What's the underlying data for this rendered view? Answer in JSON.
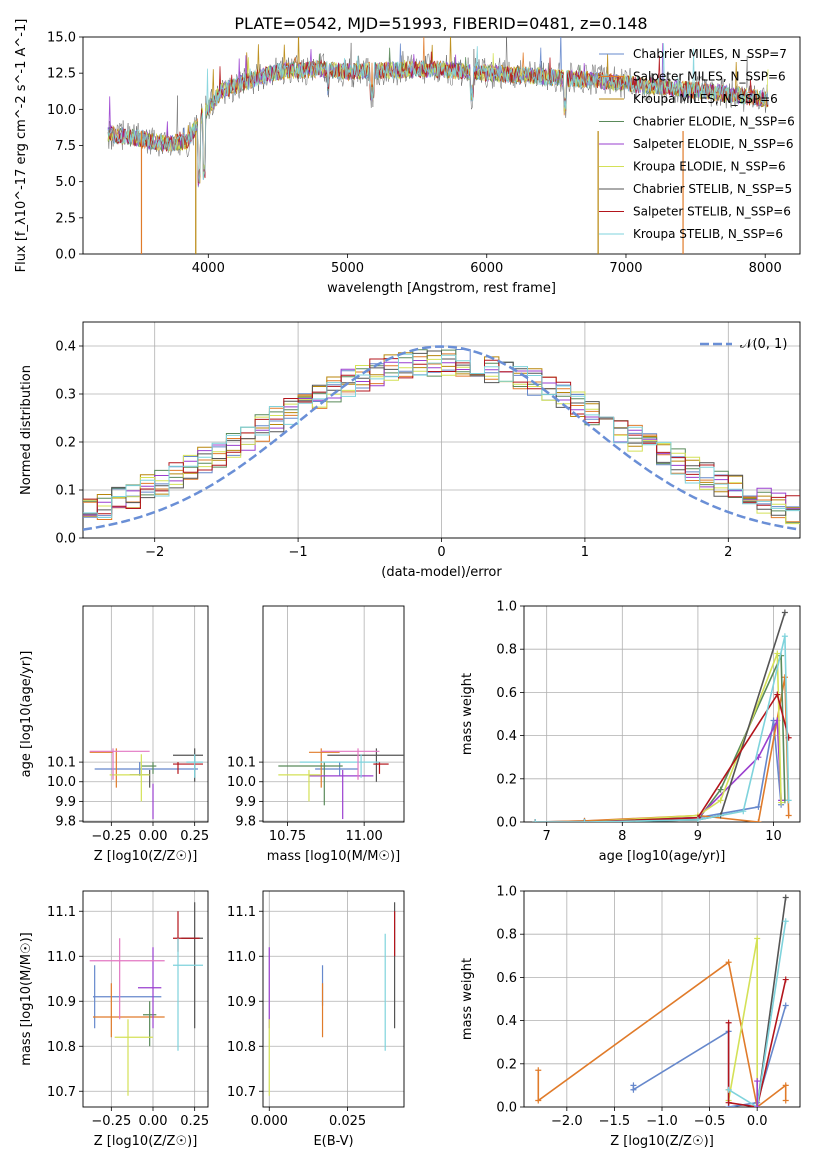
{
  "figure": {
    "title": "PLATE=0542, MJD=51993, FIBERID=0481, z=0.148"
  },
  "colors": {
    "series": [
      "#6688cc",
      "#e07b2a",
      "#b8860b",
      "#5a8a5a",
      "#9a3fcf",
      "#d4e157",
      "#555555",
      "#b3151c",
      "#7fd3dc"
    ],
    "gauss": "#6a8fd6",
    "grid": "#b0b0b0"
  },
  "legend_labels": [
    "Chabrier MILES, N_SSP=7",
    "Salpeter MILES, N_SSP=6",
    "Kroupa MILES, N_SSP=6",
    "Chabrier ELODIE, N_SSP=6",
    "Salpeter ELODIE, N_SSP=6",
    "Kroupa ELODIE, N_SSP=6",
    "Chabrier STELIB, N_SSP=5",
    "Salpeter STELIB, N_SSP=6",
    "Kroupa STELIB, N_SSP=6"
  ],
  "chart_data": [
    {
      "id": "spectrum",
      "type": "line",
      "xlabel": "wavelength [Angstrom, rest frame]",
      "ylabel": "Flux [f_λ10^-17 erg cm^-2 s^-1 A^-1]",
      "xlim": [
        3100,
        8250
      ],
      "ylim": [
        0,
        15
      ],
      "xticks": [
        4000,
        5000,
        6000,
        7000,
        8000
      ],
      "yticks": [
        0.0,
        2.5,
        5.0,
        7.5,
        10.0,
        12.5,
        15.0
      ],
      "ytick_labels": [
        "0.0",
        "2.5",
        "5.0",
        "7.5",
        "10.0",
        "12.5",
        "15.0"
      ],
      "grid": false,
      "legend": "upper-right",
      "continuum": [
        [
          3280,
          8.3
        ],
        [
          3500,
          8.0
        ],
        [
          3700,
          7.6
        ],
        [
          3850,
          7.8
        ],
        [
          3950,
          9.5
        ],
        [
          4100,
          11.3
        ],
        [
          4300,
          12.0
        ],
        [
          4500,
          12.6
        ],
        [
          4800,
          12.8
        ],
        [
          5000,
          12.6
        ],
        [
          5300,
          12.7
        ],
        [
          5600,
          12.8
        ],
        [
          5900,
          12.6
        ],
        [
          6200,
          12.4
        ],
        [
          6500,
          12.2
        ],
        [
          6800,
          12.0
        ],
        [
          7100,
          11.7
        ],
        [
          7400,
          11.4
        ],
        [
          7700,
          11.1
        ],
        [
          8000,
          10.7
        ]
      ],
      "drop_lines": [
        {
          "x": 3520,
          "color": "#e07b2a"
        },
        {
          "x": 3910,
          "color": "#b8860b"
        },
        {
          "x": 6800,
          "color": "#b8860b"
        },
        {
          "x": 7410,
          "color": "#e07b2a"
        }
      ]
    },
    {
      "id": "residual-histogram",
      "type": "histogram",
      "xlabel": "(data-model)/error",
      "ylabel": "Normed distribution",
      "xlim": [
        -2.5,
        2.5
      ],
      "ylim": [
        0,
        0.45
      ],
      "xticks": [
        -2,
        -1,
        0,
        1,
        2
      ],
      "xtick_labels": [
        "−2",
        "−1",
        "0",
        "1",
        "2"
      ],
      "yticks": [
        0.0,
        0.1,
        0.2,
        0.3,
        0.4
      ],
      "ytick_labels": [
        "0.0",
        "0.1",
        "0.2",
        "0.3",
        "0.4"
      ],
      "grid": true,
      "legend": "upper-right",
      "gauss_label": "𝒩(0, 1)",
      "bin_width": 0.1
    },
    {
      "id": "age-vs-Z",
      "type": "errorbar",
      "xlabel": "Z [log10(Z/Z☉)]",
      "ylabel": "age [log10(age/yr)]",
      "xlim": [
        -0.42,
        0.33
      ],
      "ylim": [
        9.795,
        10.895
      ],
      "xticks": [
        -0.25,
        0.0,
        0.25
      ],
      "xtick_labels": [
        "−0.25",
        "0.00",
        "0.25"
      ],
      "yticks": [
        9.8,
        9.9,
        10.0,
        10.1
      ],
      "ytick_labels": [
        "9.8",
        "9.9",
        "10.0",
        "10.1"
      ],
      "grid": true,
      "points": [
        {
          "x": -0.08,
          "y": 10.065,
          "xe": [
            -0.35,
            0.27
          ],
          "ye": [
            10.03,
            10.1
          ],
          "c": "#6688cc"
        },
        {
          "x": -0.22,
          "y": 10.15,
          "xe": [
            -0.38,
            -0.24
          ],
          "ye": [
            9.97,
            10.17
          ],
          "c": "#e07b2a"
        },
        {
          "x": -0.02,
          "y": 10.035,
          "xe": [
            -0.14,
            -0.02
          ],
          "ye": [
            9.97,
            10.06
          ],
          "c": "#555555"
        },
        {
          "x": 0.0,
          "y": 10.08,
          "xe": [
            -0.07,
            0.02
          ],
          "ye": [
            10.04,
            10.1
          ],
          "c": "#5a8a5a"
        },
        {
          "x": 0.0,
          "y": 9.9,
          "xe": [
            0.0,
            0.0
          ],
          "ye": [
            9.81,
            9.99
          ],
          "c": "#9a3fcf"
        },
        {
          "x": -0.07,
          "y": 10.035,
          "xe": [
            -0.26,
            -0.02
          ],
          "ye": [
            9.9,
            10.14
          ],
          "c": "#d4e157"
        },
        {
          "x": 0.25,
          "y": 10.135,
          "xe": [
            0.12,
            0.3
          ],
          "ye": [
            10.0,
            10.17
          ],
          "c": "#555555"
        },
        {
          "x": 0.15,
          "y": 10.09,
          "xe": [
            0.12,
            0.3
          ],
          "ye": [
            10.04,
            10.1
          ],
          "c": "#b3151c"
        },
        {
          "x": 0.25,
          "y": 10.1,
          "xe": [
            0.2,
            0.3
          ],
          "ye": [
            10.02,
            10.14
          ],
          "c": "#7fd3dc"
        },
        {
          "x": -0.24,
          "y": 10.155,
          "xe": [
            -0.38,
            -0.02
          ],
          "ye": [
            10.01,
            10.17
          ],
          "c": "#e377c2"
        }
      ]
    },
    {
      "id": "age-vs-mass",
      "type": "errorbar",
      "xlabel": "mass [log10(M/M☉)]",
      "ylabel": "",
      "xlim": [
        10.67,
        11.13
      ],
      "ylim": [
        9.795,
        10.895
      ],
      "xticks": [
        10.75,
        11.0
      ],
      "xtick_labels": [
        "10.75",
        "11.00"
      ],
      "yticks": [
        9.8,
        9.9,
        10.0,
        10.1
      ],
      "ytick_labels": [
        "9.8",
        "9.9",
        "10.0",
        "10.1"
      ],
      "grid": true,
      "points": [
        {
          "x": 10.92,
          "y": 10.065,
          "xe": [
            10.84,
            10.98
          ],
          "ye": [
            10.03,
            10.1
          ],
          "c": "#6688cc"
        },
        {
          "x": 10.86,
          "y": 10.15,
          "xe": [
            10.82,
            10.92
          ],
          "ye": [
            9.97,
            10.17
          ],
          "c": "#e07b2a"
        },
        {
          "x": 10.87,
          "y": 10.08,
          "xe": [
            10.72,
            10.93
          ],
          "ye": [
            9.88,
            10.1
          ],
          "c": "#5a8a5a"
        },
        {
          "x": 10.93,
          "y": 10.03,
          "xe": [
            10.82,
            11.03
          ],
          "ye": [
            9.81,
            10.06
          ],
          "c": "#9a3fcf"
        },
        {
          "x": 10.82,
          "y": 10.035,
          "xe": [
            10.72,
            10.86
          ],
          "ye": [
            9.9,
            10.06
          ],
          "c": "#d4e157"
        },
        {
          "x": 11.04,
          "y": 10.135,
          "xe": [
            10.88,
            11.14
          ],
          "ye": [
            10.0,
            10.17
          ],
          "c": "#555555"
        },
        {
          "x": 11.05,
          "y": 10.09,
          "xe": [
            11.03,
            11.08
          ],
          "ye": [
            10.04,
            10.1
          ],
          "c": "#b3151c"
        },
        {
          "x": 10.99,
          "y": 10.1,
          "xe": [
            10.79,
            11.05
          ],
          "ye": [
            10.02,
            10.14
          ],
          "c": "#7fd3dc"
        },
        {
          "x": 10.98,
          "y": 10.155,
          "xe": [
            10.86,
            11.05
          ],
          "ye": [
            10.01,
            10.17
          ],
          "c": "#e377c2"
        }
      ]
    },
    {
      "id": "weight-vs-age",
      "type": "line",
      "xlabel": "age [log10(age/yr)]",
      "ylabel": "mass weight",
      "xlim": [
        6.7,
        10.35
      ],
      "ylim": [
        0,
        1.0
      ],
      "xticks": [
        7,
        8,
        9,
        10
      ],
      "xtick_labels": [
        "7",
        "8",
        "9",
        "10"
      ],
      "yticks": [
        0.0,
        0.2,
        0.4,
        0.6,
        0.8,
        1.0
      ],
      "ytick_labels": [
        "0.0",
        "0.2",
        "0.4",
        "0.6",
        "0.8",
        "1.0"
      ],
      "grid": true,
      "series": [
        {
          "c": "#6688cc",
          "x": [
            6.85,
            7.5,
            9.0,
            9.8,
            10.0,
            10.1
          ],
          "y": [
            0.0,
            0.005,
            0.02,
            0.07,
            0.47,
            0.08
          ]
        },
        {
          "c": "#e07b2a",
          "x": [
            6.85,
            7.5,
            9.0,
            9.8,
            10.15,
            10.2
          ],
          "y": [
            0.0,
            0.005,
            0.03,
            0.0,
            0.67,
            0.03
          ]
        },
        {
          "c": "#5a8a5a",
          "x": [
            6.85,
            7.5,
            9.0,
            9.3,
            10.1,
            10.15
          ],
          "y": [
            0.0,
            0.0,
            0.01,
            0.15,
            0.77,
            0.1
          ]
        },
        {
          "c": "#9a3fcf",
          "x": [
            6.85,
            7.5,
            9.0,
            9.8,
            10.05,
            10.1
          ],
          "y": [
            0.0,
            0.0,
            0.02,
            0.3,
            0.47,
            0.1
          ]
        },
        {
          "c": "#d4e157",
          "x": [
            6.85,
            7.5,
            9.0,
            9.3,
            10.05,
            10.1
          ],
          "y": [
            0.0,
            0.0,
            0.03,
            0.1,
            0.78,
            0.09
          ]
        },
        {
          "c": "#555555",
          "x": [
            6.85,
            7.5,
            9.0,
            9.3,
            10.15
          ],
          "y": [
            0.0,
            0.0,
            0.01,
            0.03,
            0.97
          ]
        },
        {
          "c": "#b3151c",
          "x": [
            6.85,
            7.5,
            9.0,
            10.05,
            10.2
          ],
          "y": [
            0.0,
            0.0,
            0.02,
            0.59,
            0.39
          ]
        },
        {
          "c": "#7fd3dc",
          "x": [
            6.85,
            7.5,
            9.0,
            9.6,
            10.15,
            10.2
          ],
          "y": [
            0.0,
            0.0,
            0.01,
            0.05,
            0.86,
            0.1
          ]
        }
      ]
    },
    {
      "id": "mass-vs-Z",
      "type": "errorbar",
      "xlabel": "Z [log10(Z/Z☉)]",
      "ylabel": "mass [log10(M/M☉)]",
      "xlim": [
        -0.42,
        0.33
      ],
      "ylim": [
        10.665,
        11.145
      ],
      "xticks": [
        -0.25,
        0.0,
        0.25
      ],
      "xtick_labels": [
        "−0.25",
        "0.00",
        "0.25"
      ],
      "yticks": [
        10.7,
        10.8,
        10.9,
        11.0,
        11.1
      ],
      "ytick_labels": [
        "10.7",
        "10.8",
        "10.9",
        "11.0",
        "11.1"
      ],
      "grid": true,
      "points": [
        {
          "x": -0.35,
          "y": 10.91,
          "xe": [
            -0.36,
            0.05
          ],
          "ye": [
            10.84,
            10.98
          ],
          "c": "#6688cc"
        },
        {
          "x": -0.25,
          "y": 10.865,
          "xe": [
            -0.36,
            0.07
          ],
          "ye": [
            10.82,
            10.94
          ],
          "c": "#e07b2a"
        },
        {
          "x": -0.02,
          "y": 10.87,
          "xe": [
            -0.06,
            0.02
          ],
          "ye": [
            10.8,
            10.9
          ],
          "c": "#5a8a5a"
        },
        {
          "x": 0.0,
          "y": 10.93,
          "xe": [
            -0.09,
            0.05
          ],
          "ye": [
            10.84,
            11.02
          ],
          "c": "#9a3fcf"
        },
        {
          "x": -0.15,
          "y": 10.82,
          "xe": [
            -0.23,
            0.0
          ],
          "ye": [
            10.69,
            10.86
          ],
          "c": "#d4e157"
        },
        {
          "x": 0.25,
          "y": 11.04,
          "xe": [
            0.17,
            0.3
          ],
          "ye": [
            10.84,
            11.12
          ],
          "c": "#555555"
        },
        {
          "x": 0.15,
          "y": 11.04,
          "xe": [
            0.12,
            0.28
          ],
          "ye": [
            11.01,
            11.1
          ],
          "c": "#b3151c"
        },
        {
          "x": 0.15,
          "y": 10.98,
          "xe": [
            0.12,
            0.3
          ],
          "ye": [
            10.79,
            11.04
          ],
          "c": "#7fd3dc"
        },
        {
          "x": -0.2,
          "y": 10.99,
          "xe": [
            -0.38,
            0.07
          ],
          "ye": [
            10.86,
            11.04
          ],
          "c": "#e377c2"
        }
      ]
    },
    {
      "id": "mass-vs-EBV",
      "type": "errorbar",
      "xlabel": "E(B-V)",
      "ylabel": "",
      "xlim": [
        -0.002,
        0.043
      ],
      "ylim": [
        10.665,
        11.145
      ],
      "xticks": [
        0.0,
        0.025
      ],
      "xtick_labels": [
        "0.000",
        "0.025"
      ],
      "yticks": [
        10.7,
        10.8,
        10.9,
        11.0,
        11.1
      ],
      "ytick_labels": [
        "10.7",
        "10.8",
        "10.9",
        "11.0",
        "11.1"
      ],
      "grid": true,
      "points": [
        {
          "x": 0.0,
          "y": 10.93,
          "xe": [
            0.0,
            0.0
          ],
          "ye": [
            10.84,
            11.02
          ],
          "c": "#9a3fcf"
        },
        {
          "x": 0.0,
          "y": 10.82,
          "xe": [
            0.0,
            0.0
          ],
          "ye": [
            10.69,
            10.86
          ],
          "c": "#d4e157"
        },
        {
          "x": 0.017,
          "y": 10.93,
          "xe": [
            0.017,
            0.017
          ],
          "ye": [
            10.89,
            10.98
          ],
          "c": "#6688cc"
        },
        {
          "x": 0.017,
          "y": 10.87,
          "xe": [
            0.017,
            0.017
          ],
          "ye": [
            10.82,
            10.94
          ],
          "c": "#e07b2a"
        },
        {
          "x": 0.037,
          "y": 10.98,
          "xe": [
            0.037,
            0.037
          ],
          "ye": [
            10.79,
            11.05
          ],
          "c": "#7fd3dc"
        },
        {
          "x": 0.04,
          "y": 11.04,
          "xe": [
            0.04,
            0.04
          ],
          "ye": [
            10.84,
            11.12
          ],
          "c": "#555555"
        },
        {
          "x": 0.04,
          "y": 11.04,
          "xe": [
            0.04,
            0.04
          ],
          "ye": [
            11.0,
            11.1
          ],
          "c": "#b3151c"
        }
      ]
    },
    {
      "id": "weight-vs-Z",
      "type": "line",
      "xlabel": "Z [log10(Z/Z☉)]",
      "ylabel": "mass weight",
      "xlim": [
        -2.45,
        0.45
      ],
      "ylim": [
        0,
        1.0
      ],
      "xticks": [
        -2.0,
        -1.5,
        -1.0,
        -0.5,
        0.0
      ],
      "xtick_labels": [
        "−2.0",
        "−1.5",
        "−1.0",
        "−0.5",
        "0.0"
      ],
      "yticks": [
        0.0,
        0.2,
        0.4,
        0.6,
        0.8,
        1.0
      ],
      "ytick_labels": [
        "0.0",
        "0.2",
        "0.4",
        "0.6",
        "0.8",
        "1.0"
      ],
      "grid": true,
      "series": [
        {
          "c": "#6688cc",
          "x": [
            -1.3,
            -1.3,
            -0.3,
            -0.3,
            0.0,
            0.3
          ],
          "y": [
            0.1,
            0.08,
            0.35,
            0.0,
            0.02,
            0.47
          ]
        },
        {
          "c": "#e07b2a",
          "x": [
            -2.3,
            -2.3,
            -0.3,
            0.0,
            0.3,
            0.3
          ],
          "y": [
            0.17,
            0.03,
            0.67,
            0.0,
            0.1,
            0.03
          ]
        },
        {
          "c": "#d4e157",
          "x": [
            -0.3,
            -0.3,
            0.0,
            0.0
          ],
          "y": [
            0.08,
            0.03,
            0.78,
            0.0
          ]
        },
        {
          "c": "#555555",
          "x": [
            0.0,
            0.3
          ],
          "y": [
            0.0,
            0.97
          ]
        },
        {
          "c": "#b3151c",
          "x": [
            -0.3,
            -0.3,
            0.0,
            0.3
          ],
          "y": [
            0.39,
            0.02,
            0.0,
            0.59
          ]
        },
        {
          "c": "#7fd3dc",
          "x": [
            -0.3,
            0.0,
            0.3
          ],
          "y": [
            0.08,
            0.0,
            0.86
          ]
        },
        {
          "c": "#9a3fcf",
          "x": [
            0.0,
            0.0
          ],
          "y": [
            0.12,
            0.0
          ]
        }
      ]
    }
  ]
}
